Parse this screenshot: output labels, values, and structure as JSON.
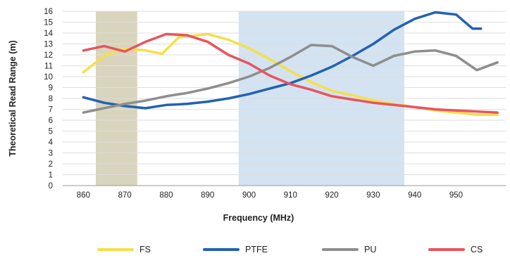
{
  "chart_data": {
    "type": "line",
    "xlabel": "Frequency (MHz)",
    "ylabel": "Theoretical Read Range (m)",
    "xlim": [
      855,
      962
    ],
    "ylim": [
      0,
      16
    ],
    "x_ticks": [
      860,
      870,
      880,
      890,
      900,
      910,
      920,
      930,
      940,
      950
    ],
    "y_ticks": [
      0,
      1,
      2,
      3,
      4,
      5,
      6,
      7,
      8,
      9,
      10,
      11,
      12,
      13,
      14,
      15,
      16
    ],
    "grid": "horizontal",
    "legend_position": "bottom",
    "bands": [
      {
        "x0": 863,
        "x1": 873,
        "color": "#d8d4bd"
      },
      {
        "x0": 897.5,
        "x1": 937.5,
        "color": "#d3e3f1"
      }
    ],
    "series": [
      {
        "name": "FS",
        "color": "#f4df4c",
        "points": [
          [
            860,
            10.4
          ],
          [
            865,
            11.9
          ],
          [
            870,
            12.6
          ],
          [
            875,
            12.4
          ],
          [
            879,
            12.1
          ],
          [
            883,
            13.6
          ],
          [
            890,
            13.9
          ],
          [
            895,
            13.4
          ],
          [
            900,
            12.6
          ],
          [
            905,
            11.6
          ],
          [
            910,
            10.5
          ],
          [
            915,
            9.5
          ],
          [
            920,
            8.7
          ],
          [
            925,
            8.3
          ],
          [
            930,
            7.8
          ],
          [
            935,
            7.5
          ],
          [
            940,
            7.2
          ],
          [
            945,
            6.9
          ],
          [
            950,
            6.7
          ],
          [
            955,
            6.5
          ],
          [
            960,
            6.5
          ]
        ]
      },
      {
        "name": "PTFE",
        "color": "#2262b0",
        "points": [
          [
            860,
            8.1
          ],
          [
            865,
            7.6
          ],
          [
            870,
            7.3
          ],
          [
            875,
            7.1
          ],
          [
            880,
            7.4
          ],
          [
            885,
            7.5
          ],
          [
            890,
            7.7
          ],
          [
            895,
            8.0
          ],
          [
            900,
            8.4
          ],
          [
            905,
            8.9
          ],
          [
            910,
            9.4
          ],
          [
            915,
            10.1
          ],
          [
            920,
            10.9
          ],
          [
            925,
            11.9
          ],
          [
            930,
            13.0
          ],
          [
            935,
            14.3
          ],
          [
            940,
            15.3
          ],
          [
            945,
            15.9
          ],
          [
            950,
            15.7
          ],
          [
            954,
            14.4
          ],
          [
            956,
            14.4
          ]
        ]
      },
      {
        "name": "PU",
        "color": "#8e8e8e",
        "points": [
          [
            860,
            6.7
          ],
          [
            865,
            7.1
          ],
          [
            870,
            7.5
          ],
          [
            875,
            7.8
          ],
          [
            880,
            8.2
          ],
          [
            885,
            8.5
          ],
          [
            890,
            8.9
          ],
          [
            895,
            9.4
          ],
          [
            900,
            10.0
          ],
          [
            905,
            10.8
          ],
          [
            910,
            11.8
          ],
          [
            915,
            12.9
          ],
          [
            920,
            12.8
          ],
          [
            925,
            11.8
          ],
          [
            930,
            11.0
          ],
          [
            935,
            11.9
          ],
          [
            940,
            12.3
          ],
          [
            945,
            12.4
          ],
          [
            950,
            11.9
          ],
          [
            955,
            10.6
          ],
          [
            960,
            11.3
          ]
        ]
      },
      {
        "name": "CS",
        "color": "#e9545c",
        "points": [
          [
            860,
            12.4
          ],
          [
            865,
            12.8
          ],
          [
            870,
            12.3
          ],
          [
            875,
            13.2
          ],
          [
            880,
            13.9
          ],
          [
            885,
            13.8
          ],
          [
            890,
            13.2
          ],
          [
            895,
            12.0
          ],
          [
            900,
            11.2
          ],
          [
            905,
            10.1
          ],
          [
            910,
            9.3
          ],
          [
            915,
            8.8
          ],
          [
            920,
            8.2
          ],
          [
            925,
            7.9
          ],
          [
            930,
            7.6
          ],
          [
            935,
            7.4
          ],
          [
            940,
            7.2
          ],
          [
            945,
            7.0
          ],
          [
            950,
            6.9
          ],
          [
            955,
            6.8
          ],
          [
            960,
            6.7
          ]
        ]
      }
    ]
  }
}
